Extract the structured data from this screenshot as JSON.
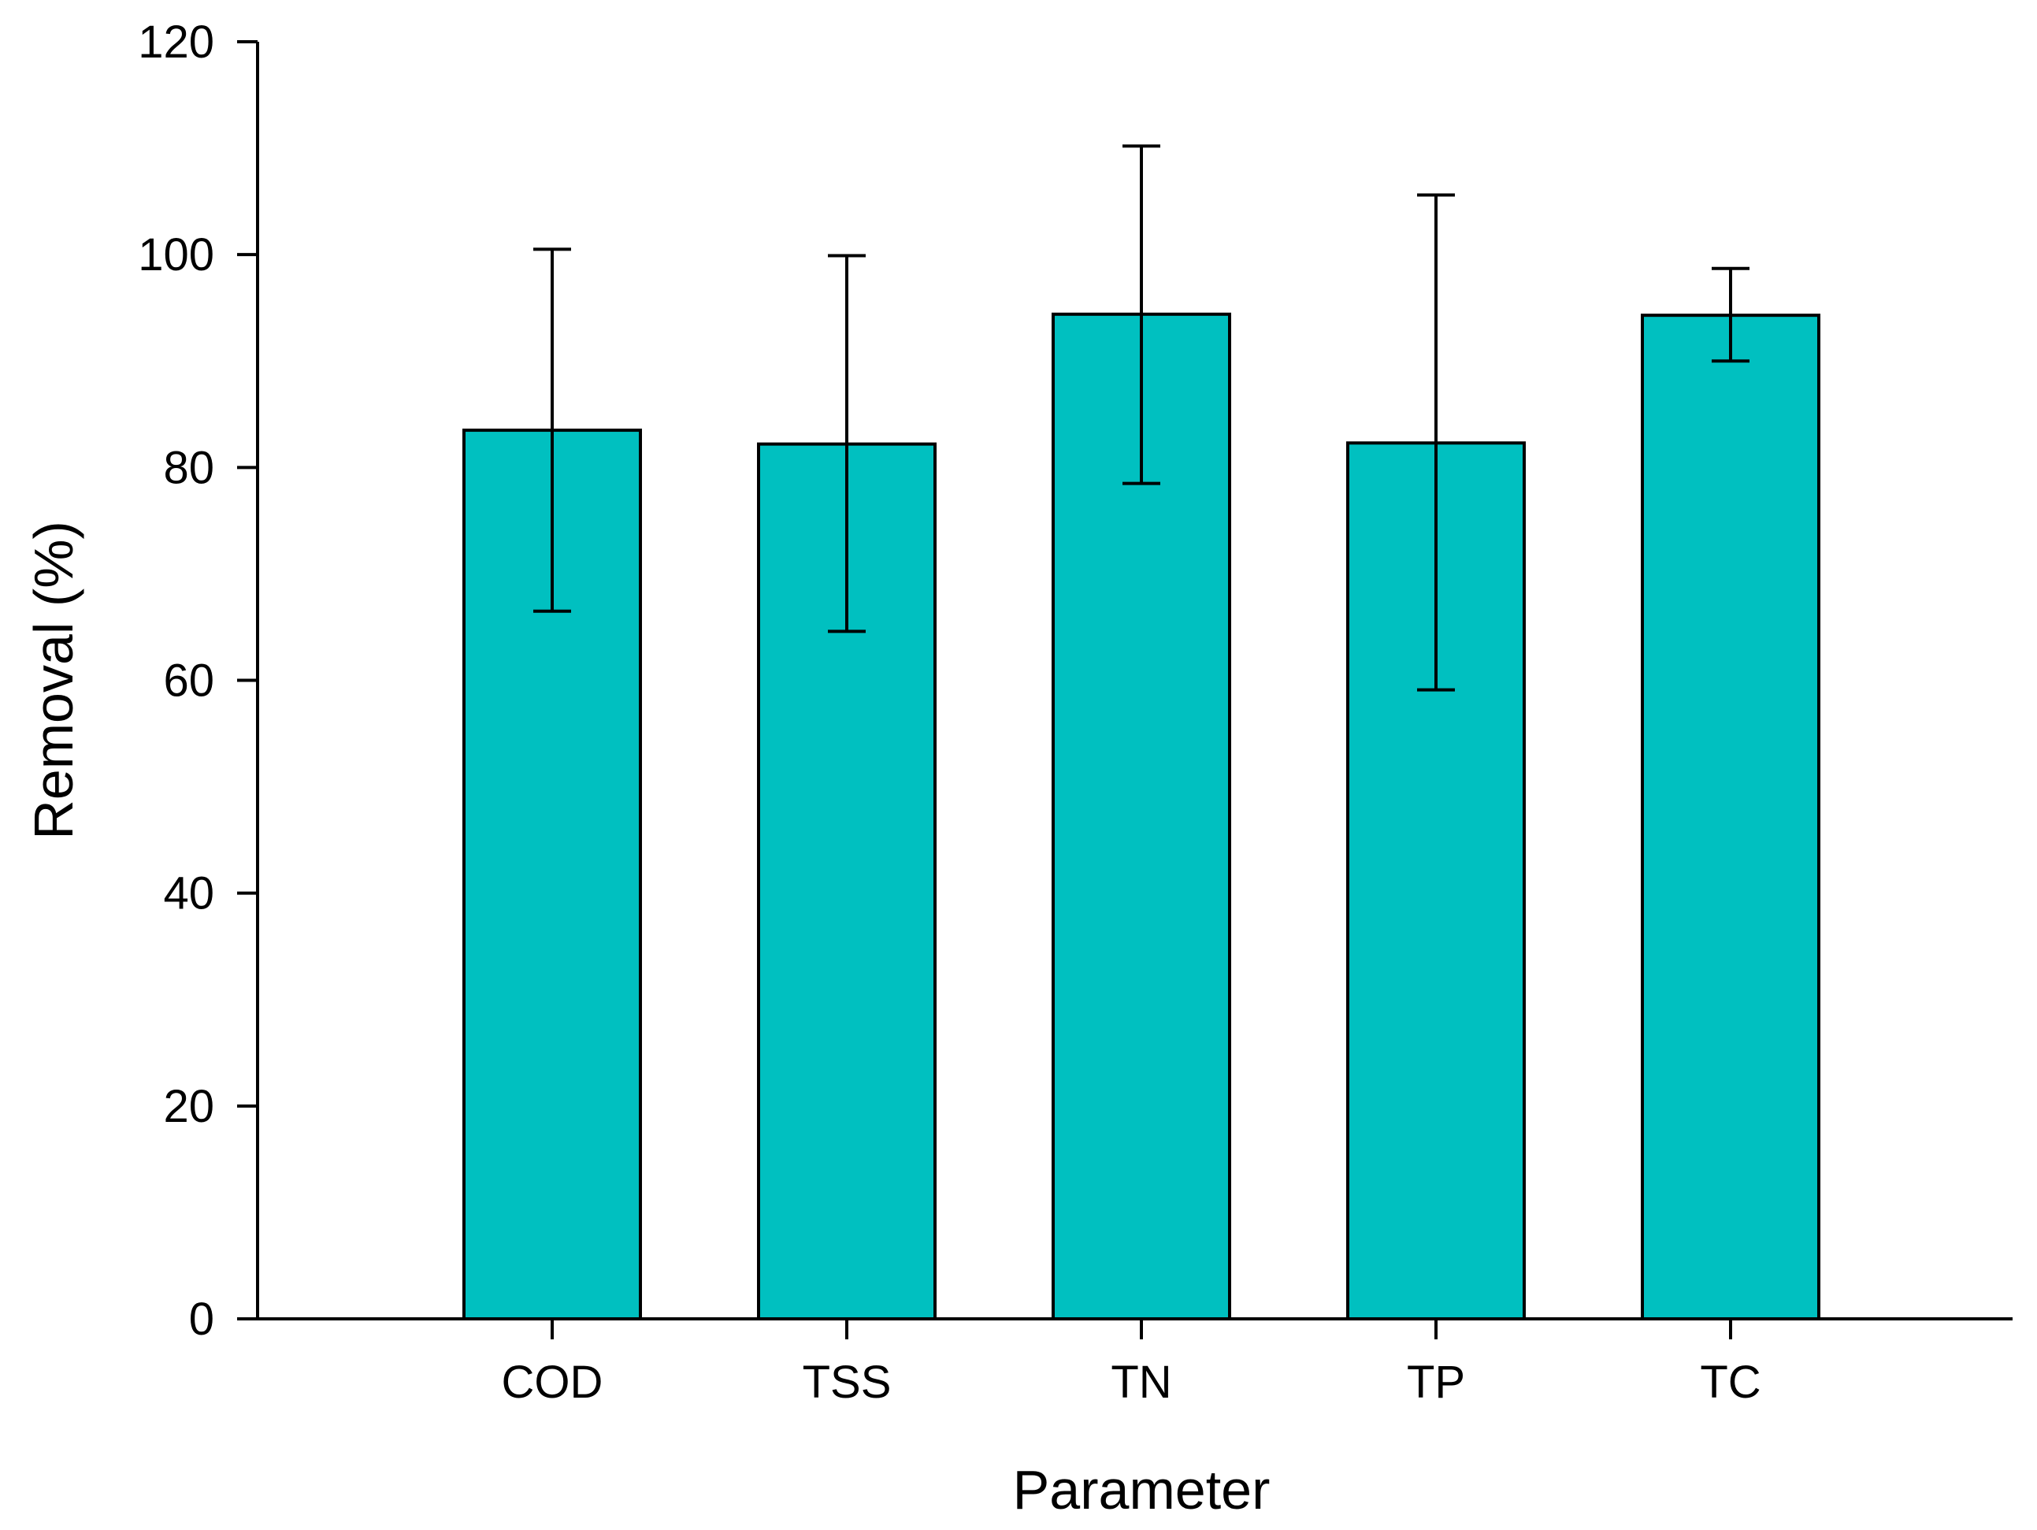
{
  "chart_data": {
    "type": "bar",
    "title": "",
    "xlabel": "Parameter",
    "ylabel": "Removal (%)",
    "categories": [
      "COD",
      "TSS",
      "TN",
      "TP",
      "TC"
    ],
    "values": [
      83.5,
      82.2,
      94.4,
      82.3,
      94.3
    ],
    "error_upper": [
      100.5,
      99.9,
      110.2,
      105.6,
      98.7
    ],
    "error_lower": [
      66.5,
      64.6,
      78.5,
      59.1,
      90.0
    ],
    "ylim": [
      0,
      120
    ],
    "yticks": [
      0,
      20,
      40,
      60,
      80,
      100,
      120
    ],
    "ytick_labels": [
      "0",
      "20",
      "40",
      "60",
      "80",
      "100",
      "120"
    ],
    "grid": false,
    "bar_color": "#00c0c0"
  }
}
